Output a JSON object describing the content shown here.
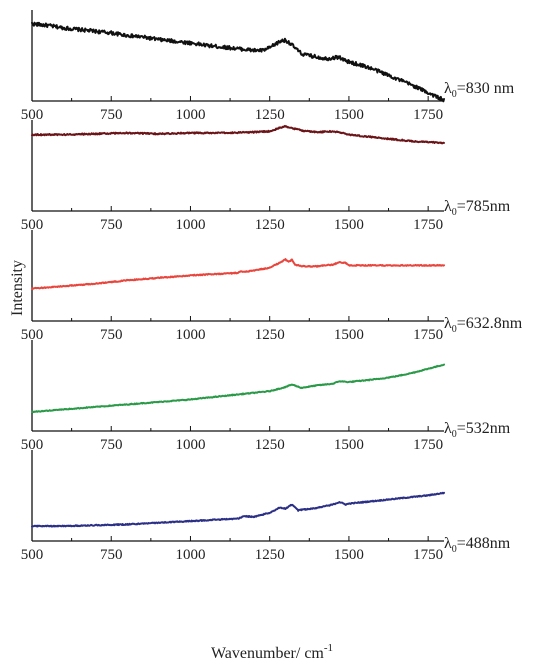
{
  "chart_data": {
    "type": "line",
    "xlabel": "Wavenumber/ cm",
    "xlabel_superscript": "-1",
    "ylabel": "Intensity",
    "xlim": [
      500,
      1800
    ],
    "x_ticks": [
      500,
      750,
      1000,
      1250,
      1500,
      1750
    ],
    "grid": false,
    "legend": "none",
    "panels": [
      {
        "label_symbol": "λ",
        "label_subscript": "0",
        "label_value": "=830 nm",
        "color": "#111111",
        "ylim": [
          0,
          1
        ],
        "x": [
          500,
          550,
          600,
          650,
          700,
          750,
          800,
          850,
          900,
          950,
          1000,
          1050,
          1100,
          1150,
          1200,
          1230,
          1250,
          1270,
          1290,
          1300,
          1310,
          1330,
          1350,
          1370,
          1400,
          1430,
          1450,
          1470,
          1480,
          1500,
          1550,
          1600,
          1650,
          1700,
          1750,
          1800
        ],
        "y": [
          0.93,
          0.91,
          0.88,
          0.86,
          0.84,
          0.82,
          0.79,
          0.77,
          0.74,
          0.72,
          0.7,
          0.67,
          0.65,
          0.63,
          0.61,
          0.61,
          0.64,
          0.69,
          0.73,
          0.73,
          0.71,
          0.64,
          0.57,
          0.55,
          0.53,
          0.51,
          0.52,
          0.53,
          0.5,
          0.47,
          0.42,
          0.35,
          0.27,
          0.19,
          0.1,
          0.01
        ],
        "noise": 0.022
      },
      {
        "label_symbol": "λ",
        "label_subscript": "0",
        "label_value": "=785nm",
        "color": "#6b1418",
        "ylim": [
          0,
          1
        ],
        "x": [
          500,
          600,
          700,
          800,
          900,
          1000,
          1100,
          1200,
          1250,
          1280,
          1300,
          1320,
          1350,
          1400,
          1450,
          1480,
          1500,
          1600,
          1700,
          1800
        ],
        "y": [
          0.92,
          0.92,
          0.93,
          0.94,
          0.93,
          0.94,
          0.94,
          0.95,
          0.96,
          1.0,
          1.02,
          1.0,
          0.97,
          0.95,
          0.96,
          0.94,
          0.92,
          0.88,
          0.84,
          0.82
        ],
        "noise": 0.008
      },
      {
        "label_symbol": "λ",
        "label_subscript": "0",
        "label_value": "=632.8nm",
        "color": "#e8453c",
        "ylim": [
          0,
          1
        ],
        "x": [
          500,
          600,
          700,
          800,
          900,
          1000,
          1100,
          1150,
          1160,
          1170,
          1200,
          1250,
          1280,
          1300,
          1310,
          1320,
          1330,
          1350,
          1400,
          1450,
          1470,
          1490,
          1500,
          1600,
          1700,
          1800
        ],
        "y": [
          0.39,
          0.42,
          0.45,
          0.49,
          0.52,
          0.55,
          0.57,
          0.58,
          0.6,
          0.59,
          0.61,
          0.64,
          0.7,
          0.74,
          0.71,
          0.74,
          0.68,
          0.66,
          0.66,
          0.68,
          0.71,
          0.7,
          0.67,
          0.67,
          0.67,
          0.67
        ],
        "noise": 0.006
      },
      {
        "label_symbol": "λ",
        "label_subscript": "0",
        "label_value": "=532nm",
        "color": "#2a9a48",
        "ylim": [
          0,
          1
        ],
        "x": [
          500,
          600,
          700,
          800,
          900,
          1000,
          1100,
          1150,
          1200,
          1250,
          1280,
          1300,
          1320,
          1350,
          1400,
          1450,
          1470,
          1500,
          1550,
          1600,
          1650,
          1700,
          1750,
          1800
        ],
        "y": [
          0.23,
          0.26,
          0.29,
          0.32,
          0.35,
          0.38,
          0.42,
          0.44,
          0.46,
          0.48,
          0.51,
          0.53,
          0.56,
          0.52,
          0.55,
          0.57,
          0.6,
          0.59,
          0.61,
          0.63,
          0.66,
          0.7,
          0.75,
          0.8
        ],
        "noise": 0.005
      },
      {
        "label_symbol": "λ",
        "label_subscript": "0",
        "label_value": "=488nm",
        "color": "#2b2f86",
        "ylim": [
          0,
          1
        ],
        "x": [
          500,
          600,
          700,
          800,
          900,
          1000,
          1100,
          1150,
          1170,
          1200,
          1250,
          1280,
          1300,
          1320,
          1340,
          1400,
          1450,
          1470,
          1490,
          1500,
          1550,
          1600,
          1650,
          1700,
          1750,
          1800
        ],
        "y": [
          0.18,
          0.18,
          0.19,
          0.2,
          0.22,
          0.24,
          0.26,
          0.27,
          0.3,
          0.29,
          0.34,
          0.4,
          0.39,
          0.44,
          0.37,
          0.4,
          0.44,
          0.47,
          0.44,
          0.45,
          0.47,
          0.49,
          0.51,
          0.53,
          0.55,
          0.58
        ],
        "noise": 0.006
      }
    ]
  }
}
